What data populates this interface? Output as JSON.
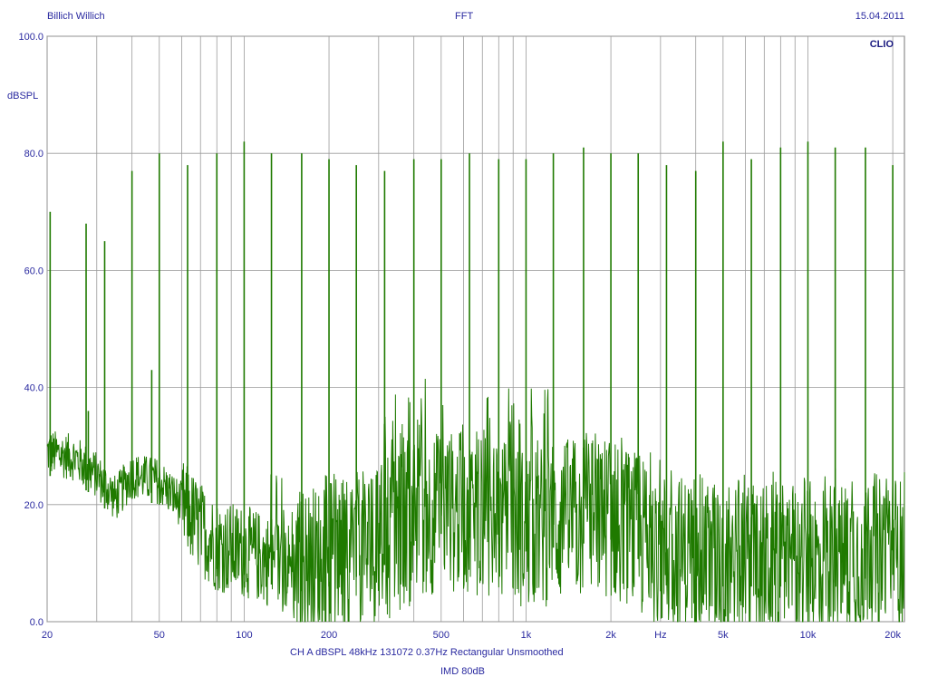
{
  "header": {
    "left": "Billich Willich",
    "center": "FFT",
    "right": "15.04.2011"
  },
  "brand": "CLIO",
  "footer": {
    "line1": "CH A    dBSPL    48kHz    131072    0.37Hz    Rectangular    Unsmoothed",
    "line2": "IMD 80dB"
  },
  "colors": {
    "trace": "#1f7a00",
    "grid": "#9a9a9a",
    "text": "#2a2aa0",
    "brand": "#1a1a80"
  },
  "chart_data": {
    "type": "line",
    "title": "FFT",
    "ylabel": "dBSPL",
    "xlabel": "Hz",
    "x_scale": "log",
    "xlim": [
      20,
      22000
    ],
    "ylim": [
      0,
      100
    ],
    "y_ticks": [
      "0.0",
      "20.0",
      "40.0",
      "60.0",
      "80.0",
      "100.0"
    ],
    "x_tick_labels": [
      {
        "x": 20,
        "label": "20"
      },
      {
        "x": 50,
        "label": "50"
      },
      {
        "x": 100,
        "label": "100"
      },
      {
        "x": 200,
        "label": "200"
      },
      {
        "x": 500,
        "label": "500"
      },
      {
        "x": 1000,
        "label": "1k"
      },
      {
        "x": 2000,
        "label": "2k"
      },
      {
        "x": 5000,
        "label": "5k"
      },
      {
        "x": 10000,
        "label": "10k"
      },
      {
        "x": 20000,
        "label": "20k"
      }
    ],
    "x_unit_label": "Hz",
    "x_unit_at": 3000,
    "x_grid": [
      20,
      30,
      40,
      50,
      60,
      70,
      80,
      90,
      100,
      200,
      300,
      400,
      500,
      600,
      700,
      800,
      900,
      1000,
      2000,
      3000,
      4000,
      5000,
      6000,
      7000,
      8000,
      9000,
      10000,
      20000
    ],
    "noise_floor": [
      [
        20,
        29
      ],
      [
        25,
        28
      ],
      [
        30,
        25
      ],
      [
        35,
        21
      ],
      [
        40,
        25
      ],
      [
        50,
        24
      ],
      [
        60,
        20
      ],
      [
        70,
        16
      ],
      [
        80,
        13
      ],
      [
        100,
        12
      ],
      [
        150,
        9
      ],
      [
        200,
        10
      ],
      [
        300,
        13
      ],
      [
        400,
        17
      ],
      [
        500,
        19
      ],
      [
        700,
        18
      ],
      [
        1000,
        16
      ],
      [
        2000,
        18
      ],
      [
        3000,
        12
      ],
      [
        5000,
        10
      ],
      [
        10000,
        10
      ],
      [
        20000,
        12
      ],
      [
        22000,
        10
      ]
    ],
    "peaks": [
      {
        "x": 20.5,
        "y": 70
      },
      {
        "x": 27.5,
        "y": 68
      },
      {
        "x": 28,
        "y": 36
      },
      {
        "x": 32,
        "y": 65
      },
      {
        "x": 40,
        "y": 77
      },
      {
        "x": 47,
        "y": 43
      },
      {
        "x": 50,
        "y": 80
      },
      {
        "x": 63,
        "y": 78
      },
      {
        "x": 80,
        "y": 80
      },
      {
        "x": 100,
        "y": 82
      },
      {
        "x": 125,
        "y": 80
      },
      {
        "x": 160,
        "y": 80
      },
      {
        "x": 200,
        "y": 79
      },
      {
        "x": 250,
        "y": 78
      },
      {
        "x": 315,
        "y": 77
      },
      {
        "x": 400,
        "y": 79
      },
      {
        "x": 500,
        "y": 79
      },
      {
        "x": 630,
        "y": 80
      },
      {
        "x": 800,
        "y": 79
      },
      {
        "x": 1000,
        "y": 79
      },
      {
        "x": 1250,
        "y": 80
      },
      {
        "x": 1600,
        "y": 81
      },
      {
        "x": 2000,
        "y": 80
      },
      {
        "x": 2500,
        "y": 80
      },
      {
        "x": 3150,
        "y": 78
      },
      {
        "x": 4000,
        "y": 77
      },
      {
        "x": 5000,
        "y": 82
      },
      {
        "x": 6300,
        "y": 79
      },
      {
        "x": 8000,
        "y": 81
      },
      {
        "x": 10000,
        "y": 82
      },
      {
        "x": 12500,
        "y": 81
      },
      {
        "x": 16000,
        "y": 81
      },
      {
        "x": 20000,
        "y": 78
      }
    ]
  }
}
